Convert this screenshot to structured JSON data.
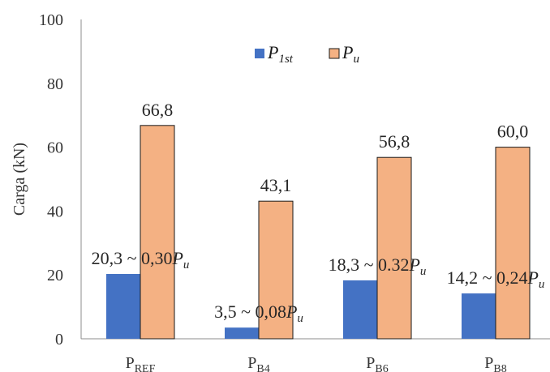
{
  "chart_data": {
    "type": "bar",
    "ylabel": "Carga (kN)",
    "ylim": [
      0,
      100
    ],
    "yticks": [
      "0",
      "20",
      "40",
      "60",
      "80",
      "100"
    ],
    "grid": false,
    "legend_position": "top-center",
    "categories": [
      {
        "base": "P",
        "sub": "REF"
      },
      {
        "base": "P",
        "sub": "B4"
      },
      {
        "base": "P",
        "sub": "B6"
      },
      {
        "base": "P",
        "sub": "B8"
      }
    ],
    "series": [
      {
        "name": {
          "base": "P",
          "sub": "1st"
        },
        "color": "#4472C4",
        "values": [
          20.3,
          3.5,
          18.3,
          14.2
        ],
        "labels": [
          {
            "text": "20,3 ~ 0,30",
            "var": "P",
            "sub": "u"
          },
          {
            "text": "3,5 ~ 0,08",
            "var": "P",
            "sub": "u"
          },
          {
            "text": "18,3 ~ 0.32",
            "var": "P",
            "sub": "u"
          },
          {
            "text": "14,2 ~ 0,24",
            "var": "P",
            "sub": "u"
          }
        ]
      },
      {
        "name": {
          "base": "P",
          "sub": "u"
        },
        "color": "#F4B183",
        "values": [
          66.8,
          43.1,
          56.8,
          60.0
        ],
        "labels": [
          "66,8",
          "43,1",
          "56,8",
          "60,0"
        ]
      }
    ]
  }
}
